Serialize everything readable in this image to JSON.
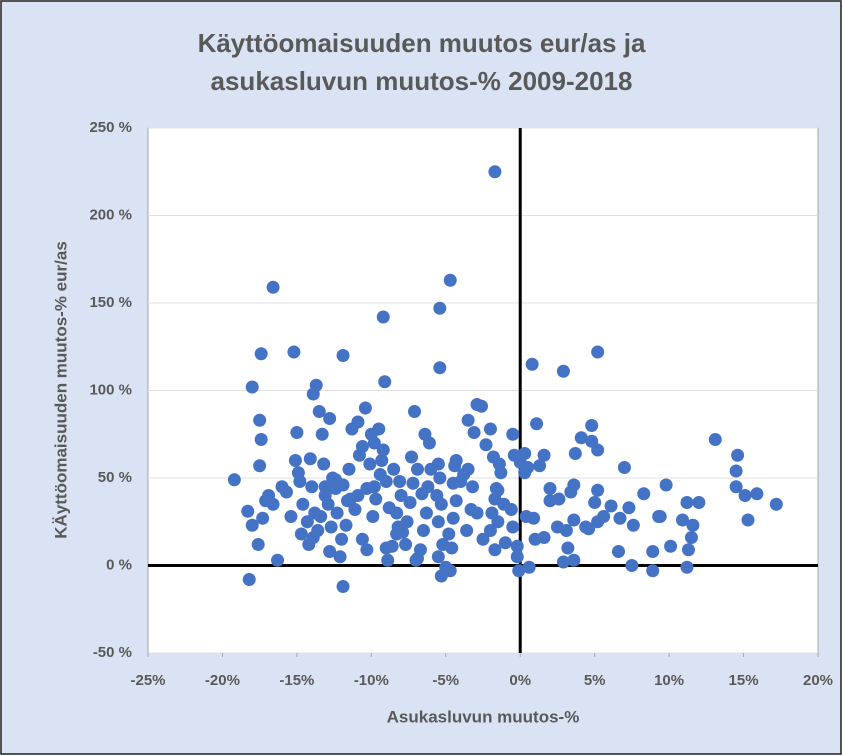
{
  "chart_data": {
    "type": "scatter",
    "title": "Käyttöomaisuuden muutos eur/as ja asukasluvun muutos-% 2009-2018",
    "xlabel": "Asukasluvun muutos-%",
    "ylabel": "KÄyttöomaisuuden muutos-% eur/as",
    "color": "#4472c4",
    "grid": true,
    "xlim": [
      -25,
      20
    ],
    "ylim": [
      -50,
      250
    ],
    "xticks": [
      {
        "value": -25,
        "label": "-25%"
      },
      {
        "value": -20,
        "label": "-20%"
      },
      {
        "value": -15,
        "label": "-15%"
      },
      {
        "value": -10,
        "label": "-10%"
      },
      {
        "value": -5,
        "label": "-5%"
      },
      {
        "value": 0,
        "label": "0%"
      },
      {
        "value": 5,
        "label": "5%"
      },
      {
        "value": 10,
        "label": "10%"
      },
      {
        "value": 15,
        "label": "15%"
      },
      {
        "value": 20,
        "label": "20%"
      }
    ],
    "yticks": [
      {
        "value": -50,
        "label": "-50 %"
      },
      {
        "value": 0,
        "label": "0 %"
      },
      {
        "value": 50,
        "label": "50 %"
      },
      {
        "value": 100,
        "label": "100 %"
      },
      {
        "value": 150,
        "label": "150 %"
      },
      {
        "value": 200,
        "label": "200 %"
      },
      {
        "value": 250,
        "label": "250 %"
      }
    ],
    "x": [
      -1.7,
      -16.6,
      -4.7,
      -5.4,
      -9.2,
      0.8,
      5.2,
      2.9,
      -17.4,
      -15.2,
      -11.9,
      -5.4,
      -9.1,
      -18.0,
      -13.7,
      -13.9,
      13.1,
      4.1,
      7.0,
      14.6,
      14.5,
      17.2,
      15.1,
      15.3,
      15.9,
      12.0,
      11.6,
      11.2,
      11.2,
      10.1,
      9.3,
      8.9,
      6.7,
      6.6,
      7.5,
      8.3,
      9.4,
      5.2,
      4.8,
      4.8,
      5.2,
      5.0,
      4.6,
      3.7,
      3.6,
      3.6,
      3.6,
      3.2,
      1.6,
      1.1,
      0.5,
      0.3,
      2.6,
      2.0,
      3.1,
      1.6,
      1.0,
      0.6,
      7.6,
      7.3,
      8.9,
      10.9,
      11.5,
      14.5,
      9.8,
      6.1,
      5.6,
      5.2,
      4.4,
      3.4,
      2.9,
      0.4,
      0.3,
      1.3,
      2.0,
      2.5,
      0.9,
      11.3,
      -0.4,
      0,
      -0.5,
      -1.4,
      -1.5,
      -1.3,
      -2.0,
      -2.3,
      -3.1,
      -2.9,
      -2.6,
      -1.8,
      -1.6,
      -1.7,
      -1.9,
      -1.5,
      -2.0,
      -2.5,
      -1.0,
      -0.5,
      -0.1,
      -0.2,
      -0.2,
      -0.6,
      -1.1,
      -1.7,
      -2.9,
      -3.3,
      -3.2,
      -3.5,
      -3.5,
      -3.6,
      -3.8,
      -4.0,
      -4.3,
      -4.4,
      -4.5,
      -4.3,
      -4.5,
      -4.8,
      -4.6,
      -4.7,
      -5.0,
      -5.3,
      -5.5,
      -5.2,
      -5.5,
      -5.3,
      -5.4,
      -5.5,
      -5.6,
      -6.0,
      -6.1,
      -6.4,
      -6.2,
      -6.3,
      -6.5,
      -6.7,
      -7.0,
      -6.9,
      -7.1,
      -7.3,
      -7.2,
      -7.4,
      -7.6,
      -7.9,
      -8.0,
      -8.1,
      -8.3,
      -8.5,
      -8.6,
      -8.9,
      -9.0,
      -9.2,
      -9.3,
      -9.4,
      -9.5,
      -9.7,
      -9.8,
      -10.1,
      -10.3,
      -10.4,
      -10.6,
      -10.9,
      -11.1,
      -10.9,
      -11.3,
      -11.5,
      -11.7,
      -12.0,
      -12.1,
      -11.9,
      -12.3,
      -12.4,
      -12.6,
      -12.9,
      -13.1,
      -13.2,
      -13.3,
      -13.5,
      -13.6,
      -13.8,
      -14.0,
      -14.2,
      -14.3,
      -14.6,
      -14.8,
      -15.1,
      -15.0,
      -14.9,
      -15.4,
      -15.7,
      -16.0,
      -16.3,
      -16.6,
      -16.9,
      -17.3,
      -17.5,
      -17.4,
      -17.5,
      -17.6,
      -18.0,
      -18.3,
      -18.2,
      -19.2,
      -17.1,
      -12.8,
      -11.9,
      -11.6,
      -10.3,
      -9.9,
      -9.0,
      -8.3,
      -7.7,
      -6.9,
      -12.8,
      -13.9,
      -13.4,
      -14.7,
      -12.7,
      -10.6,
      -11.4,
      -9.8,
      -8.8,
      -8.2,
      -6.6,
      -10.0,
      -10.8,
      -12.4,
      -13.1,
      -14.1
    ],
    "values": [
      225,
      159,
      163,
      147,
      142,
      115,
      122,
      111,
      121,
      122,
      120,
      113,
      105,
      102,
      103,
      98,
      72,
      73,
      56,
      63,
      54,
      35,
      40,
      26,
      41,
      36,
      23,
      36,
      -1,
      11,
      28,
      -3,
      27,
      8,
      0,
      41,
      28,
      43,
      80,
      71,
      66,
      36,
      21,
      64,
      46,
      26,
      3,
      10,
      63,
      81,
      56,
      64,
      38,
      37,
      20,
      16,
      15,
      -1,
      23,
      33,
      8,
      26,
      16,
      45,
      46,
      34,
      28,
      25,
      22,
      42,
      2,
      28,
      53,
      57,
      44,
      22,
      27,
      9,
      63,
      59,
      75,
      58,
      43,
      53,
      78,
      69,
      76,
      92,
      91,
      62,
      44,
      38,
      30,
      25,
      20,
      15,
      13,
      22,
      -3,
      5,
      11,
      32,
      35,
      9,
      30,
      32,
      45,
      55,
      83,
      20,
      52,
      48,
      60,
      57,
      47,
      37,
      27,
      18,
      10,
      -3,
      -1,
      -6,
      5,
      12,
      25,
      35,
      50,
      58,
      40,
      55,
      70,
      75,
      45,
      30,
      20,
      9,
      3,
      55,
      88,
      62,
      47,
      36,
      25,
      19,
      40,
      48,
      30,
      55,
      11,
      3,
      48,
      66,
      60,
      52,
      78,
      38,
      70,
      58,
      44,
      90,
      68,
      40,
      32,
      82,
      78,
      55,
      23,
      15,
      5,
      -12,
      30,
      44,
      50,
      35,
      45,
      58,
      75,
      88,
      20,
      30,
      45,
      12,
      25,
      35,
      48,
      60,
      76,
      53,
      28,
      42,
      45,
      3,
      35,
      40,
      27,
      57,
      72,
      83,
      12,
      23,
      31,
      -8,
      49,
      37,
      84,
      46,
      37,
      9,
      28,
      10,
      18,
      12,
      4,
      8,
      16,
      28,
      18,
      22,
      15,
      38,
      45,
      33,
      22,
      41,
      75,
      63,
      49,
      40,
      61
    ]
  }
}
